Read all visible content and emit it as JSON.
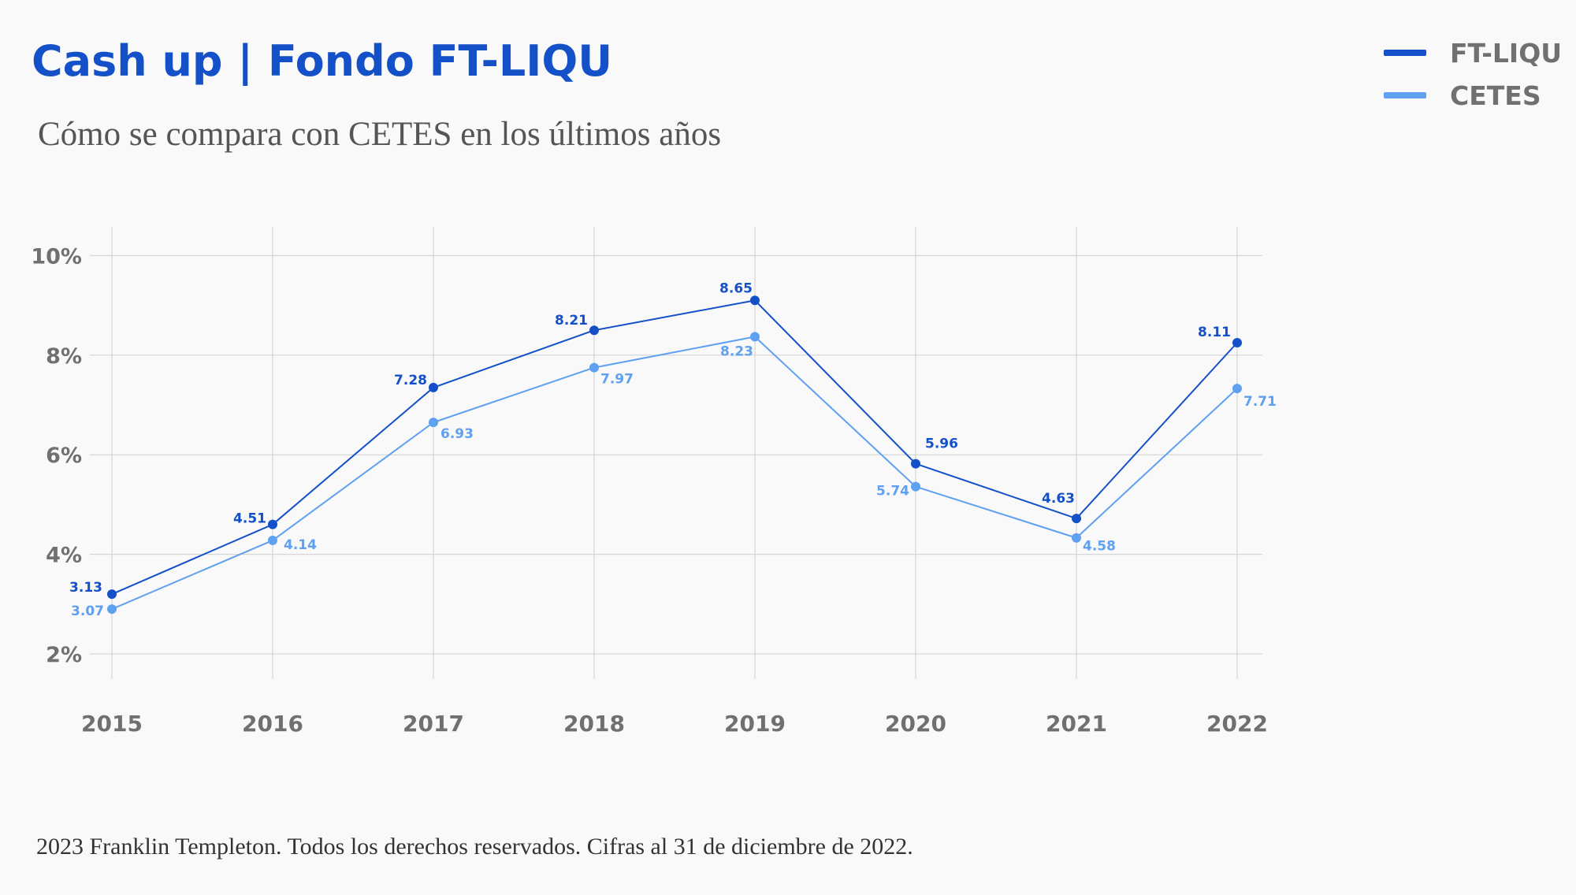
{
  "header": {
    "title": "Cash up | Fondo FT-LIQU",
    "subtitle": "Cómo se compara con CETES en los últimos años"
  },
  "footer": {
    "text": "2023 Franklin Templeton. Todos los derechos reservados. Cifras al 31 de diciembre de 2022."
  },
  "legend": [
    {
      "label": "FT-LIQU",
      "color": "#1450c8"
    },
    {
      "label": "CETES",
      "color": "#5fa0f0"
    }
  ],
  "chart_data": {
    "type": "line",
    "title": "Cash up | Fondo FT-LIQU",
    "subtitle": "Cómo se compara con CETES en los últimos años",
    "xlabel": "",
    "ylabel": "",
    "categories": [
      "2015",
      "2016",
      "2017",
      "2018",
      "2019",
      "2020",
      "2021",
      "2022"
    ],
    "ylim": [
      2,
      10
    ],
    "yticks": [
      2,
      4,
      6,
      8,
      10
    ],
    "ytick_labels": [
      "2%",
      "4%",
      "6%",
      "8%",
      "10%"
    ],
    "grid": true,
    "legend_position": "top-right",
    "series": [
      {
        "name": "FT-LIQU",
        "color": "#1450c8",
        "values": [
          3.13,
          4.51,
          7.28,
          8.21,
          8.65,
          5.96,
          4.63,
          8.11
        ],
        "labels": [
          "3.13",
          "4.51",
          "7.28",
          "8.21",
          "8.65",
          "5.96",
          "4.63",
          "8.11"
        ],
        "plotted": [
          3.2,
          4.6,
          7.35,
          8.5,
          9.1,
          5.82,
          4.72,
          8.25
        ]
      },
      {
        "name": "CETES",
        "color": "#5fa0f0",
        "values": [
          3.07,
          4.14,
          6.93,
          7.97,
          8.23,
          5.74,
          4.58,
          7.71
        ],
        "labels": [
          "3.07",
          "4.14",
          "6.93",
          "7.97",
          "8.23",
          "5.74",
          "4.58",
          "7.71"
        ],
        "plotted": [
          2.9,
          4.28,
          6.65,
          7.75,
          8.37,
          5.36,
          4.33,
          7.33
        ]
      }
    ]
  }
}
